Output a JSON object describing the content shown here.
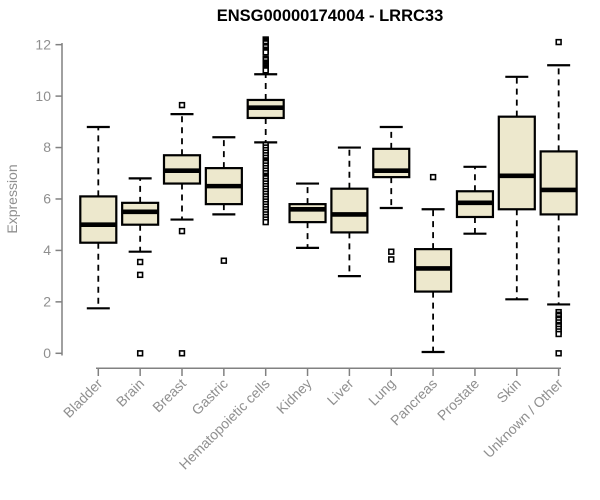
{
  "chart_data": {
    "type": "boxplot",
    "title": "ENSG00000174004 - LRRC33",
    "xlabel": "",
    "ylabel": "Expression",
    "ylim": [
      0,
      12
    ],
    "yticks": [
      0,
      2,
      4,
      6,
      8,
      10,
      12
    ],
    "grid": false,
    "legend": "none",
    "categories": [
      "Bladder",
      "Brain",
      "Breast",
      "Gastric",
      "Hematopoietic cells",
      "Kidney",
      "Liver",
      "Lung",
      "Pancreas",
      "Prostate",
      "Skin",
      "Unknown / Other"
    ],
    "series": [
      {
        "name": "Bladder",
        "low": 1.75,
        "q1": 4.3,
        "median": 5.0,
        "q3": 6.1,
        "high": 8.8,
        "outliers": []
      },
      {
        "name": "Brain",
        "low": 3.95,
        "q1": 5.0,
        "median": 5.5,
        "q3": 5.85,
        "high": 6.8,
        "outliers": [
          3.55,
          3.05,
          0.0
        ]
      },
      {
        "name": "Breast",
        "low": 5.2,
        "q1": 6.6,
        "median": 7.1,
        "q3": 7.7,
        "high": 9.3,
        "outliers": [
          9.65,
          4.75,
          0.0
        ]
      },
      {
        "name": "Gastric",
        "low": 5.4,
        "q1": 5.8,
        "median": 6.5,
        "q3": 7.2,
        "high": 8.4,
        "outliers": [
          3.6
        ]
      },
      {
        "name": "Hematopoietic cells",
        "low": 8.2,
        "q1": 9.15,
        "median": 9.55,
        "q3": 9.85,
        "high": 10.85,
        "outliers": [
          12.2,
          12.15,
          12.1,
          12.05,
          11.95,
          11.9,
          11.8,
          11.75,
          11.7,
          11.45,
          11.4,
          11.3,
          11.25,
          11.2,
          11.15,
          11.1,
          11.05,
          11.0,
          8.1,
          8.0,
          7.9,
          7.8,
          7.7,
          7.6,
          7.5,
          7.45,
          7.4,
          7.3,
          7.2,
          7.1,
          7.0,
          6.9,
          6.85,
          6.8,
          6.7,
          6.6,
          6.5,
          6.4,
          6.3,
          6.2,
          6.1,
          6.0,
          5.9,
          5.8,
          5.7,
          5.6,
          5.5,
          5.4,
          5.3,
          5.2,
          5.1
        ]
      },
      {
        "name": "Kidney",
        "low": 4.1,
        "q1": 5.1,
        "median": 5.6,
        "q3": 5.8,
        "high": 6.6,
        "outliers": []
      },
      {
        "name": "Liver",
        "low": 3.0,
        "q1": 4.7,
        "median": 5.4,
        "q3": 6.4,
        "high": 8.0,
        "outliers": []
      },
      {
        "name": "Lung",
        "low": 5.65,
        "q1": 6.85,
        "median": 7.1,
        "q3": 7.95,
        "high": 8.8,
        "outliers": [
          3.95,
          3.65
        ]
      },
      {
        "name": "Pancreas",
        "low": 0.05,
        "q1": 2.4,
        "median": 3.3,
        "q3": 4.05,
        "high": 5.6,
        "outliers": [
          6.85
        ]
      },
      {
        "name": "Prostate",
        "low": 4.65,
        "q1": 5.3,
        "median": 5.85,
        "q3": 6.3,
        "high": 7.25,
        "outliers": []
      },
      {
        "name": "Skin",
        "low": 2.1,
        "q1": 5.6,
        "median": 6.9,
        "q3": 9.2,
        "high": 10.75,
        "outliers": []
      },
      {
        "name": "Unknown / Other",
        "low": 1.9,
        "q1": 5.4,
        "median": 6.35,
        "q3": 7.85,
        "high": 11.2,
        "outliers": [
          12.1,
          1.6,
          1.5,
          1.45,
          1.35,
          1.3,
          1.2,
          1.1,
          1.05,
          0.95,
          0.85,
          0.75,
          0.0
        ]
      }
    ],
    "colors": {
      "box_fill": "#EDE8CD",
      "box_stroke": "#000000",
      "axis": "#818181",
      "axis_text": "#8F8F8F",
      "title_text": "#000000"
    }
  }
}
